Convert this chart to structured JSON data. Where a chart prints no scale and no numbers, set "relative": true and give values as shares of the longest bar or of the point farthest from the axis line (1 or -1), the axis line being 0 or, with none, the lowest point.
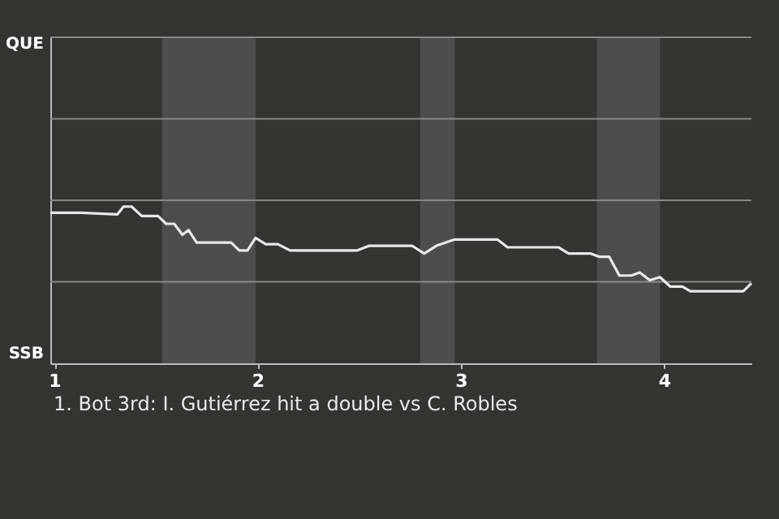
{
  "chart_data": {
    "type": "line",
    "relative": true,
    "x": [
      0.98,
      1.13,
      1.31,
      1.34,
      1.38,
      1.43,
      1.51,
      1.55,
      1.59,
      1.63,
      1.66,
      1.7,
      1.87,
      1.91,
      1.95,
      1.99,
      2.04,
      2.1,
      2.16,
      2.49,
      2.55,
      2.76,
      2.82,
      2.88,
      2.97,
      3.18,
      3.23,
      3.48,
      3.53,
      3.64,
      3.68,
      3.73,
      3.78,
      3.8,
      3.84,
      3.88,
      3.93,
      3.98,
      4.03,
      4.09,
      4.13,
      4.39,
      4.43
    ],
    "series": [
      {
        "color": "#e8e8e8",
        "values": [
          0.96,
          0.96,
          0.95,
          1,
          1,
          0.94,
          0.94,
          0.89,
          0.89,
          0.82,
          0.85,
          0.77,
          0.77,
          0.72,
          0.72,
          0.8,
          0.76,
          0.76,
          0.72,
          0.72,
          0.75,
          0.75,
          0.7,
          0.75,
          0.79,
          0.79,
          0.74,
          0.74,
          0.7,
          0.7,
          0.68,
          0.68,
          0.56,
          0.56,
          0.56,
          0.58,
          0.53,
          0.55,
          0.49,
          0.49,
          0.46,
          0.46,
          0.51
        ]
      }
    ],
    "xlim": [
      0.98,
      4.43
    ],
    "xticks": [
      1,
      2,
      3,
      4
    ],
    "ref_lines": [
      {
        "axis": "y",
        "value": 0.52,
        "color": "#8a8886"
      },
      {
        "axis": "y",
        "value": 1.04,
        "color": "#8a8886"
      },
      {
        "axis": "y",
        "value": 1.56,
        "color": "#8a8886"
      },
      {
        "axis": "y",
        "value": 2.08,
        "color": "#8a8886"
      }
    ],
    "bands": [
      {
        "axis": "x",
        "from": 1.53,
        "to": 1.99,
        "color": "#4e4d4b"
      },
      {
        "axis": "x",
        "from": 2.8,
        "to": 2.97,
        "color": "#4e4d4b"
      },
      {
        "axis": "x",
        "from": 3.67,
        "to": 3.98,
        "color": "#4e4d4b"
      }
    ],
    "annotations": [
      "QUE",
      "SSB",
      "1. Bot 3rd: I. Gutiérrez hit a double vs C. Robles"
    ]
  }
}
